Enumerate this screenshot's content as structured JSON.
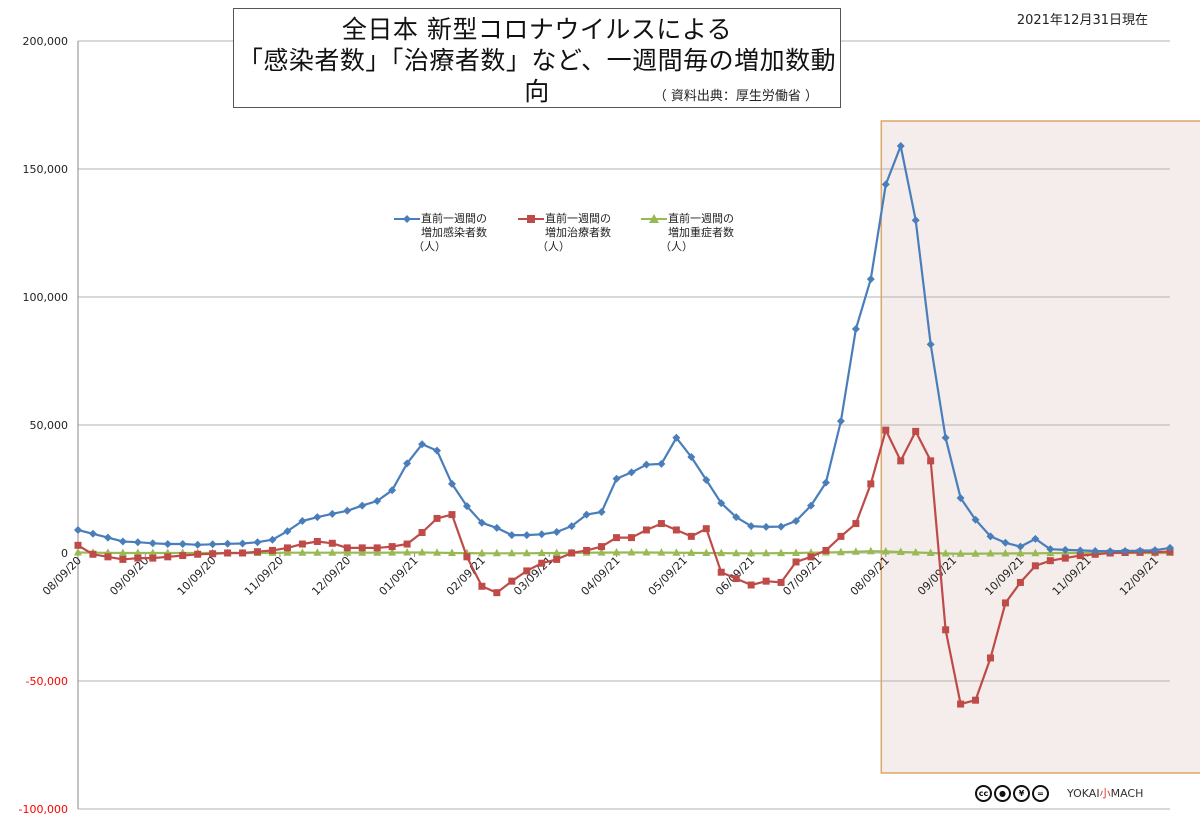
{
  "title": {
    "line1": "全日本  新型コロナウイルスによる",
    "line2": "「感染者数」「治療者数」など、一週間毎の増加数動向",
    "source": "（ 資料出典：厚生労働省 ）"
  },
  "date_label": "2021年12月31日現在",
  "legend": [
    {
      "line1": "直前一週間の",
      "line2": "増加感染者数",
      "unit": "（人）",
      "marker": "diamond",
      "color": "#4a7ebb"
    },
    {
      "line1": "直前一週間の",
      "line2": "増加治療者数",
      "unit": "（人）",
      "marker": "square",
      "color": "#be4b48"
    },
    {
      "line1": "直前一週間の",
      "line2": "増加重症者数",
      "unit": "（人）",
      "marker": "triangle",
      "color": "#98b954"
    }
  ],
  "footer": {
    "cc_icons": [
      "cc",
      "by",
      "nc",
      "nd"
    ],
    "brand_a": "YOKAI",
    "brand_b": "小",
    "brand_c": "MACH"
  },
  "chart_data": {
    "type": "line",
    "title": "全日本  新型コロナウイルスによる 「感染者数」「治療者数」など、一週間毎の増加数動向",
    "ylim": [
      -100000,
      200000
    ],
    "y_ticks": [
      200000,
      150000,
      100000,
      50000,
      0,
      -50000,
      -100000
    ],
    "y_tick_labels": [
      "200,000",
      "150,000",
      "100,000",
      "50,000",
      "0",
      "-50,000",
      "-100,000"
    ],
    "negative_tick_color": "#ff0000",
    "x_tick_labels": [
      "08/09/20",
      "09/09/20",
      "10/09/20",
      "11/09/20",
      "12/09/20",
      "01/09/21",
      "02/09/21",
      "03/09/21",
      "04/09/21",
      "05/09/21",
      "06/09/21",
      "07/09/21",
      "08/09/21",
      "09/09/21",
      "10/09/21",
      "11/09/21",
      "12/09/21"
    ],
    "x_tick_index": [
      0,
      4.5,
      9,
      13.5,
      18,
      22.5,
      27,
      31.5,
      36,
      40.5,
      45,
      49.5,
      54,
      58.5,
      63,
      67.5,
      72
    ],
    "x_count": 74,
    "grid": "horizontal",
    "highlight": {
      "start_index": 53.7,
      "end_index": 76.4,
      "fill": "#f4edeb",
      "stroke": "#dba66a"
    },
    "series": [
      {
        "name": "直前一週間の増加感染者数（人）",
        "color": "#4a7ebb",
        "marker": "diamond",
        "values": [
          9000,
          7500,
          6000,
          4500,
          4200,
          3800,
          3500,
          3500,
          3200,
          3400,
          3600,
          3700,
          4200,
          5200,
          8500,
          12500,
          14000,
          15300,
          16500,
          18500,
          20300,
          24500,
          35000,
          42500,
          40000,
          27000,
          18300,
          11800,
          9800,
          7000,
          7000,
          7300,
          8200,
          10500,
          15000,
          16000,
          29000,
          31500,
          34500,
          34800,
          45000,
          37500,
          28500,
          19500,
          14000,
          10500,
          10200,
          10300,
          12500,
          18500,
          27500,
          51500,
          87500,
          107000,
          144000,
          159000,
          130000,
          81500,
          45000,
          21500,
          13000,
          6500,
          4000,
          2500,
          5500,
          1500,
          1200,
          1000,
          800,
          700,
          800,
          900,
          1100,
          2000
        ]
      },
      {
        "name": "直前一週間の増加治療者数（人）",
        "color": "#be4b48",
        "marker": "square",
        "values": [
          3000,
          -500,
          -1500,
          -2500,
          -2000,
          -2000,
          -1500,
          -1000,
          -500,
          -300,
          0,
          0,
          500,
          1000,
          2000,
          3500,
          4500,
          3800,
          2000,
          2000,
          2000,
          2500,
          3500,
          8000,
          13500,
          15000,
          -1500,
          -13000,
          -15500,
          -11000,
          -7000,
          -4000,
          -2500,
          0,
          1000,
          2500,
          6000,
          6000,
          9000,
          11500,
          9000,
          6500,
          9500,
          -7500,
          -10000,
          -12500,
          -11000,
          -11500,
          -3500,
          -1500,
          1000,
          6500,
          11500,
          27000,
          48000,
          36000,
          47500,
          36000,
          -30000,
          -59000,
          -57500,
          -41000,
          -19500,
          -11500,
          -5000,
          -3000,
          -2000,
          -1000,
          -500,
          0,
          200,
          300,
          400,
          500
        ]
      },
      {
        "name": "直前一週間の増加重症者数（人）",
        "color": "#98b954",
        "marker": "triangle",
        "values": [
          200,
          100,
          50,
          0,
          0,
          0,
          0,
          0,
          0,
          0,
          0,
          0,
          0,
          50,
          100,
          100,
          100,
          100,
          100,
          100,
          100,
          150,
          200,
          200,
          100,
          0,
          -50,
          -100,
          -100,
          -100,
          -100,
          -50,
          0,
          50,
          100,
          150,
          200,
          200,
          200,
          150,
          100,
          50,
          0,
          -50,
          -100,
          -100,
          -100,
          -50,
          0,
          100,
          200,
          300,
          500,
          700,
          600,
          400,
          200,
          0,
          -200,
          -300,
          -300,
          -200,
          -200,
          -100,
          -100,
          -50,
          0,
          0,
          0,
          0,
          0,
          0,
          0,
          0
        ]
      }
    ]
  }
}
